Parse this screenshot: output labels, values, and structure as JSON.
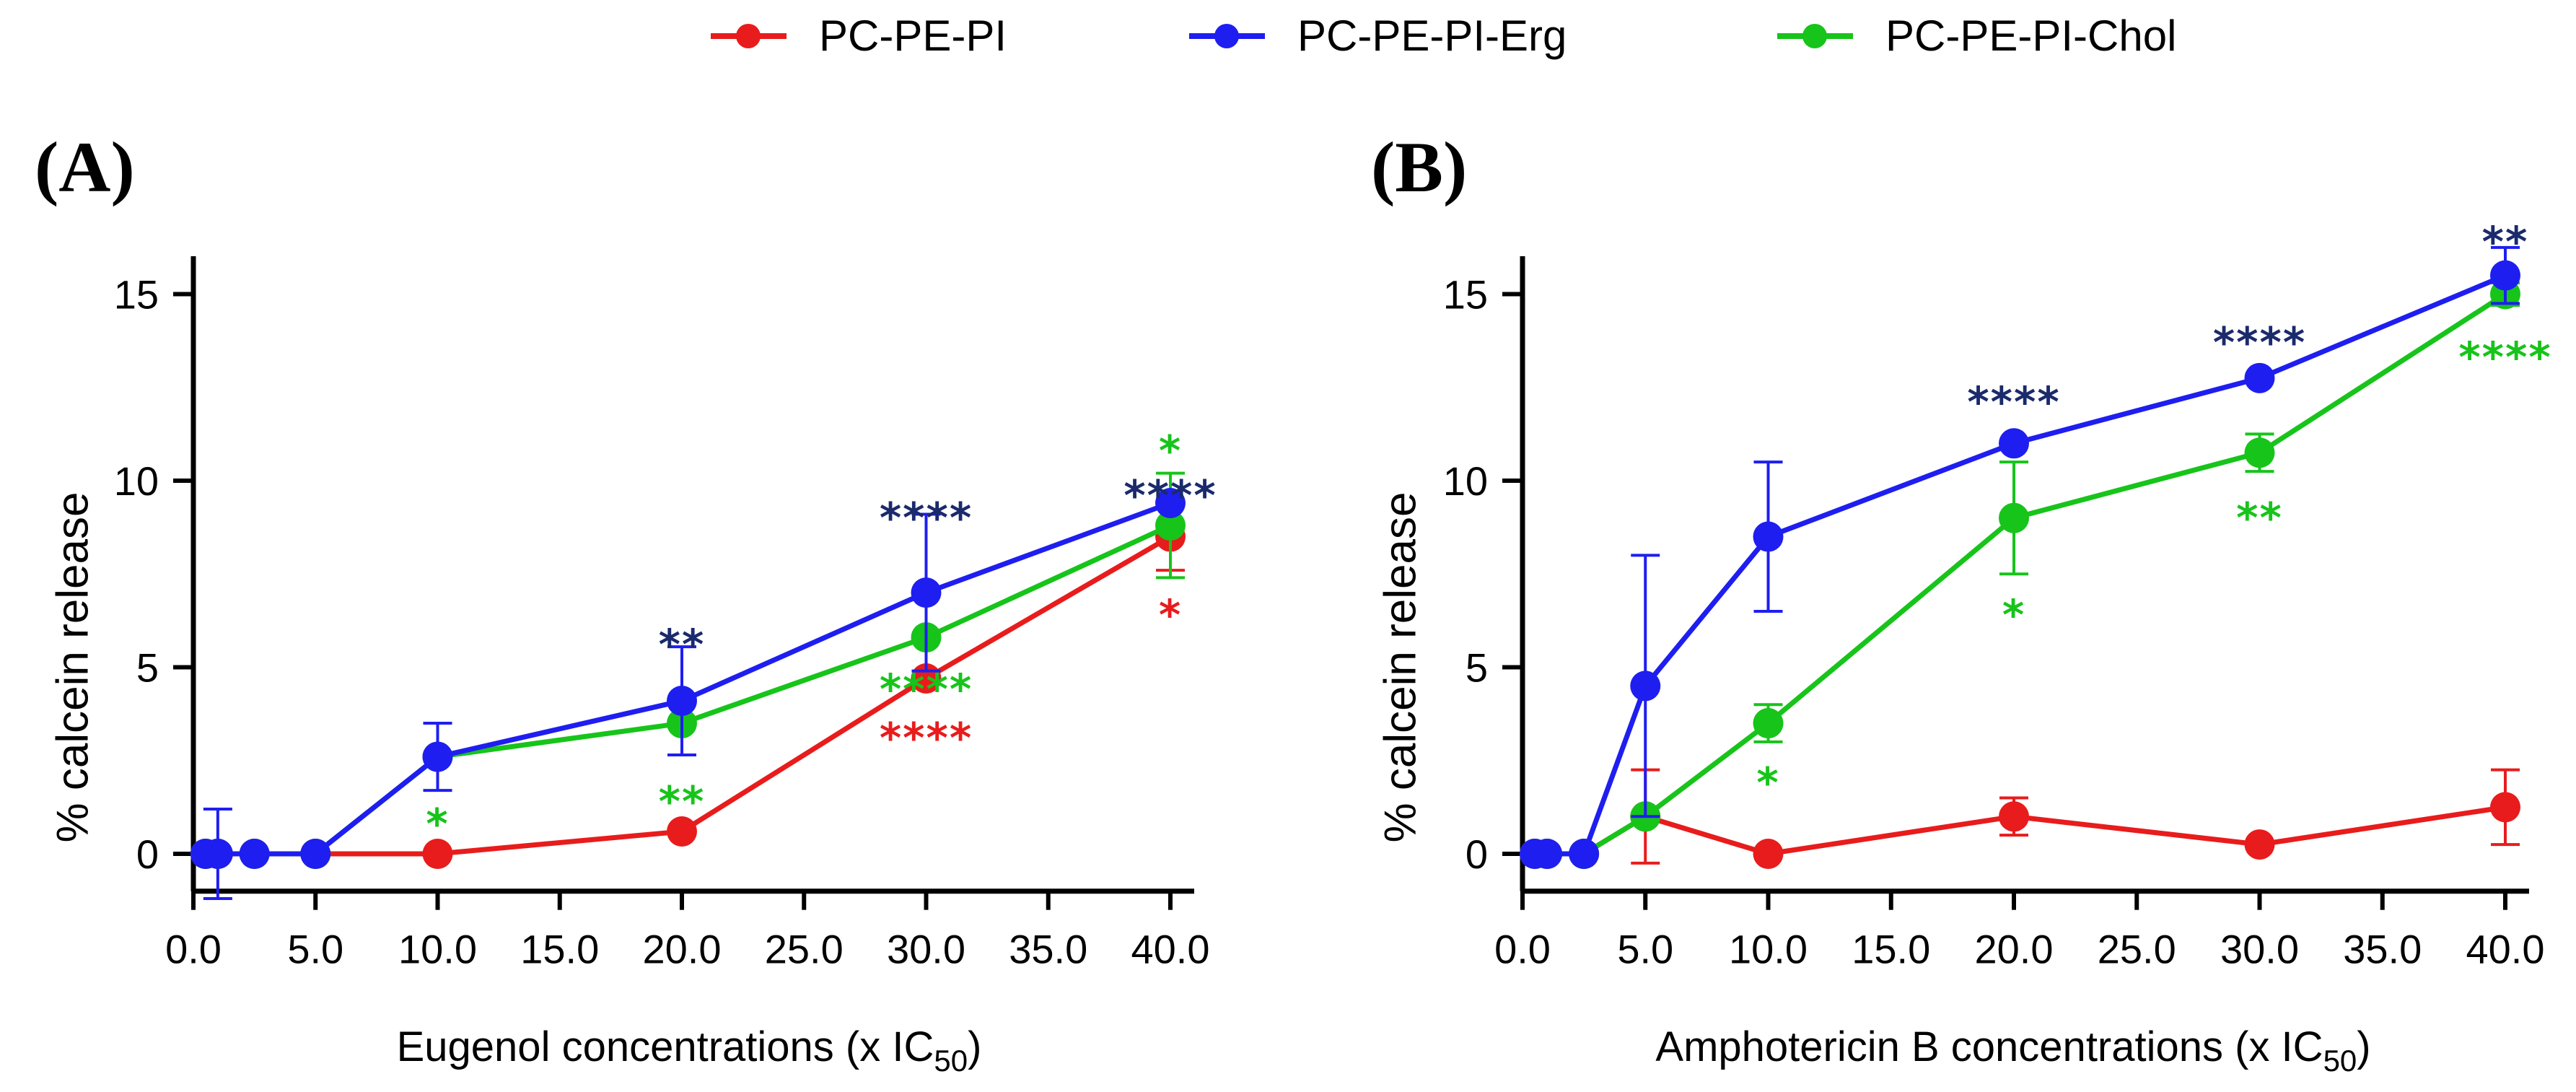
{
  "colors": {
    "PC-PE-PI": "#e81c1c",
    "PC-PE-PI-Erg": "#1e1ef0",
    "PC-PE-PI-Chol": "#17c41a",
    "star_navy": "#1a2a6c"
  },
  "legend": [
    {
      "name": "PC-PE-PI",
      "color_key": "PC-PE-PI"
    },
    {
      "name": "PC-PE-PI-Erg",
      "color_key": "PC-PE-PI-Erg"
    },
    {
      "name": "PC-PE-PI-Chol",
      "color_key": "PC-PE-PI-Chol"
    }
  ],
  "chart_data": [
    {
      "type": "line",
      "panel_label": "(A)",
      "title": "",
      "xlabel": "Eugenol concentrations (x IC",
      "xlabel_sub": "50",
      "xlabel_end": ")",
      "ylabel": "% calcein release",
      "xlim": [
        0,
        41
      ],
      "ylim": [
        -1,
        15.5
      ],
      "xticks": [
        0,
        5,
        10,
        15,
        20,
        25,
        30,
        35,
        40
      ],
      "xtick_labels": [
        "0.0",
        "5.0",
        "10.0",
        "15.0",
        "20.0",
        "25.0",
        "30.0",
        "35.0",
        "40.0"
      ],
      "yticks": [
        0,
        5,
        10,
        15
      ],
      "ytick_labels": [
        "0",
        "5",
        "10",
        "15"
      ],
      "series": [
        {
          "name": "PC-PE-PI",
          "color_key": "PC-PE-PI",
          "x": [
            0.5,
            1,
            2.5,
            5,
            10,
            20,
            30,
            40
          ],
          "y": [
            0,
            0,
            0,
            0,
            0,
            0.6,
            4.7,
            8.5
          ],
          "err": [
            0,
            0,
            0,
            0,
            0,
            0,
            0,
            0.9
          ]
        },
        {
          "name": "PC-PE-PI-Erg",
          "color_key": "PC-PE-PI-Erg",
          "x": [
            0.5,
            1,
            2.5,
            5,
            10,
            20,
            30,
            40
          ],
          "y": [
            0,
            0,
            0,
            0,
            2.6,
            4.1,
            7.0,
            9.4
          ],
          "err": [
            0,
            1.2,
            0,
            0,
            0.9,
            1.45,
            2.1,
            0
          ]
        },
        {
          "name": "PC-PE-PI-Chol",
          "color_key": "PC-PE-PI-Chol",
          "x": [
            0.5,
            1,
            2.5,
            5,
            10,
            20,
            30,
            40
          ],
          "y": [
            0,
            0,
            0,
            0,
            2.6,
            3.5,
            5.8,
            8.8
          ],
          "err": [
            0,
            0,
            0,
            0,
            0,
            0,
            0,
            1.4
          ]
        }
      ],
      "annotations": [
        {
          "text": "*",
          "x": 10,
          "y": 1.0,
          "color_key": "PC-PE-PI-Chol"
        },
        {
          "text": "**",
          "x": 20,
          "y": 5.8,
          "color_key": "star_navy"
        },
        {
          "text": "**",
          "x": 20,
          "y": 1.6,
          "color_key": "PC-PE-PI-Chol"
        },
        {
          "text": "****",
          "x": 30,
          "y": 9.2,
          "color_key": "star_navy"
        },
        {
          "text": "****",
          "x": 30,
          "y": 4.6,
          "color_key": "PC-PE-PI-Chol"
        },
        {
          "text": "****",
          "x": 30,
          "y": 3.3,
          "color_key": "PC-PE-PI"
        },
        {
          "text": "*",
          "x": 40,
          "y": 11.0,
          "color_key": "PC-PE-PI-Chol"
        },
        {
          "text": "****",
          "x": 40,
          "y": 9.8,
          "color_key": "star_navy"
        },
        {
          "text": "*",
          "x": 40,
          "y": 6.6,
          "color_key": "PC-PE-PI"
        }
      ]
    },
    {
      "type": "line",
      "panel_label": "(B)",
      "title": "",
      "xlabel": "Amphotericin B concentrations (x IC",
      "xlabel_sub": "50",
      "xlabel_end": ")",
      "ylabel": "% calcein release",
      "xlim": [
        0,
        41
      ],
      "ylim": [
        -1,
        16.5
      ],
      "xticks": [
        0,
        5,
        10,
        15,
        20,
        25,
        30,
        35,
        40
      ],
      "xtick_labels": [
        "0.0",
        "5.0",
        "10.0",
        "15.0",
        "20.0",
        "25.0",
        "30.0",
        "35.0",
        "40.0"
      ],
      "yticks": [
        0,
        5,
        10,
        15
      ],
      "ytick_labels": [
        "0",
        "5",
        "10",
        "15"
      ],
      "series": [
        {
          "name": "PC-PE-PI",
          "color_key": "PC-PE-PI",
          "x": [
            0.5,
            1,
            2.5,
            5,
            10,
            20,
            30,
            40
          ],
          "y": [
            0,
            0,
            0,
            1.0,
            0,
            1.0,
            0.25,
            1.25
          ],
          "err": [
            0,
            0,
            0,
            1.25,
            0,
            0.5,
            0,
            1.0
          ]
        },
        {
          "name": "PC-PE-PI-Erg",
          "color_key": "PC-PE-PI-Erg",
          "x": [
            0.5,
            1,
            2.5,
            5,
            10,
            20,
            30,
            40
          ],
          "y": [
            0,
            0,
            0,
            4.5,
            8.5,
            11.0,
            12.75,
            15.5
          ],
          "err": [
            0,
            0,
            0,
            3.5,
            2.0,
            0,
            0,
            0.75
          ]
        },
        {
          "name": "PC-PE-PI-Chol",
          "color_key": "PC-PE-PI-Chol",
          "x": [
            0.5,
            1,
            2.5,
            5,
            10,
            20,
            30,
            40
          ],
          "y": [
            0,
            0,
            0,
            1.0,
            3.5,
            9.0,
            10.75,
            15.0
          ],
          "err": [
            0,
            0,
            0,
            0,
            0.5,
            1.5,
            0.5,
            0.3
          ]
        }
      ],
      "annotations": [
        {
          "text": "*",
          "x": 10,
          "y": 2.1,
          "color_key": "PC-PE-PI-Chol"
        },
        {
          "text": "****",
          "x": 20,
          "y": 12.3,
          "color_key": "star_navy"
        },
        {
          "text": "*",
          "x": 20,
          "y": 6.6,
          "color_key": "PC-PE-PI-Chol"
        },
        {
          "text": "****",
          "x": 30,
          "y": 13.9,
          "color_key": "star_navy"
        },
        {
          "text": "**",
          "x": 30,
          "y": 9.2,
          "color_key": "PC-PE-PI-Chol"
        },
        {
          "text": "**",
          "x": 40,
          "y": 16.6,
          "color_key": "star_navy"
        },
        {
          "text": "****",
          "x": 40,
          "y": 13.5,
          "color_key": "PC-PE-PI-Chol"
        }
      ]
    }
  ]
}
